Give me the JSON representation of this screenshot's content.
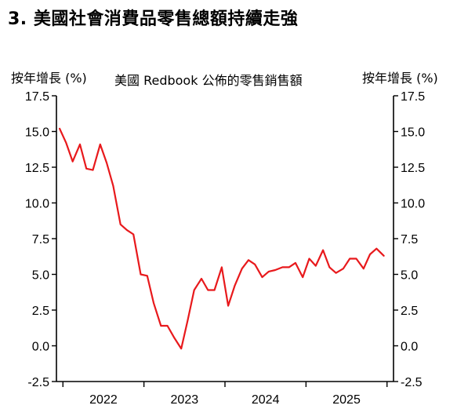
{
  "header": {
    "title": "3. 美國社會消費品零售總額持續走強",
    "unit_left": "按年增長 (%)",
    "unit_right": "按年增長 (%)"
  },
  "chart_data": {
    "type": "line",
    "title": "美國 Redbook 公佈的零售銷售額",
    "xlabel": "",
    "ylabel": "按年增長 (%)",
    "ylim": [
      -2.5,
      17.5
    ],
    "yticks": [
      17.5,
      15.0,
      12.5,
      10.0,
      7.5,
      5.0,
      2.5,
      0.0,
      -2.5
    ],
    "ytick_labels": [
      "17.5",
      "15.0",
      "12.5",
      "10.0",
      "7.5",
      "5.0",
      "2.5",
      "0.0",
      "-2.5"
    ],
    "x_tick_labels": [
      "2022",
      "2023",
      "2024",
      "2025"
    ],
    "xlim": [
      2021.92,
      2026.08
    ],
    "grid": false,
    "color": "#e8191c",
    "series": [
      {
        "name": "",
        "x": [
          2021.96,
          2022.04,
          2022.12,
          2022.21,
          2022.29,
          2022.37,
          2022.46,
          2022.54,
          2022.62,
          2022.71,
          2022.79,
          2022.87,
          2022.96,
          2023.04,
          2023.12,
          2023.21,
          2023.29,
          2023.37,
          2023.46,
          2023.54,
          2023.62,
          2023.71,
          2023.79,
          2023.87,
          2023.96,
          2024.04,
          2024.12,
          2024.21,
          2024.29,
          2024.37,
          2024.46,
          2024.54,
          2024.62,
          2024.71,
          2024.79,
          2024.87,
          2024.96,
          2025.04,
          2025.12,
          2025.21,
          2025.29,
          2025.37,
          2025.46,
          2025.54,
          2025.62,
          2025.71,
          2025.79,
          2025.87,
          2025.96
        ],
        "values": [
          15.2,
          14.2,
          12.9,
          14.1,
          12.4,
          12.3,
          14.1,
          12.8,
          11.2,
          8.5,
          8.1,
          7.8,
          5.0,
          4.9,
          3.0,
          1.4,
          1.4,
          0.6,
          -0.2,
          1.8,
          3.9,
          4.7,
          3.9,
          3.9,
          5.5,
          2.8,
          4.2,
          5.4,
          6.0,
          5.7,
          4.8,
          5.2,
          5.3,
          5.5,
          5.5,
          5.8,
          4.8,
          6.1,
          5.6,
          6.7,
          5.5,
          5.1,
          5.4,
          6.1,
          6.1,
          5.4,
          6.4,
          6.8,
          6.3
        ]
      }
    ]
  }
}
